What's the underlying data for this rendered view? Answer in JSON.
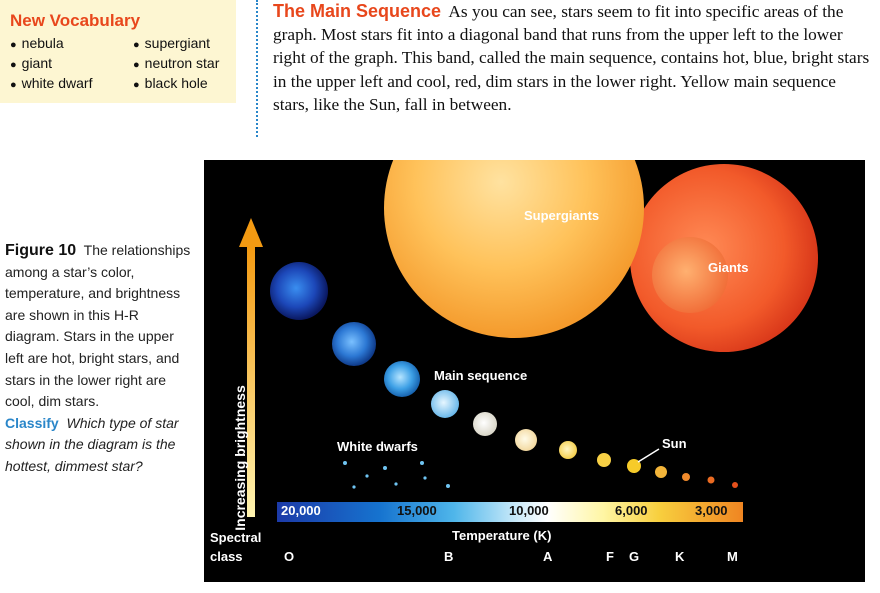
{
  "vocab": {
    "title": "New Vocabulary",
    "col1": [
      "nebula",
      "giant",
      "white dwarf"
    ],
    "col2": [
      "supergiant",
      "neutron star",
      "black hole"
    ]
  },
  "paragraph": {
    "heading": "The Main Sequence",
    "body": "As you can see, stars seem to fit into specific areas of the graph. Most stars fit into a diagonal band that runs from the upper left to the lower right of the graph. This band, called the main sequence, contains hot, blue, bright stars in the upper left and cool, red, dim stars in the lower right. Yellow main sequence stars, like the Sun, fall in between."
  },
  "caption": {
    "label": "Figure 10",
    "text": "The relationships among a star’s color, temperature, and brightness are shown in this H-R diagram. Stars in the upper left are hot, bright stars, and stars in the lower right are cool, dim stars.",
    "classify": "Classify",
    "question": "Which type of star shown in the diagram is the hottest, dimmest star?"
  },
  "diagram": {
    "labels": {
      "supergiants": "Supergiants",
      "giants": "Giants",
      "main_sequence": "Main sequence",
      "white_dwarfs": "White dwarfs",
      "sun": "Sun",
      "y_axis": "Increasing brightness",
      "x_axis": "Temperature (K)",
      "spectral_line1": "Spectral",
      "spectral_line2": "class"
    },
    "temperature_ticks": [
      "20,000",
      "15,000",
      "10,000",
      "6,000",
      "3,000"
    ],
    "spectral_classes": [
      "O",
      "B",
      "A",
      "F",
      "G",
      "K",
      "M"
    ],
    "colors": {
      "hot": "#1f5fd6",
      "mid": "#ffffff",
      "cool": "#e03a1a",
      "arrow": "#f7a21a"
    }
  }
}
